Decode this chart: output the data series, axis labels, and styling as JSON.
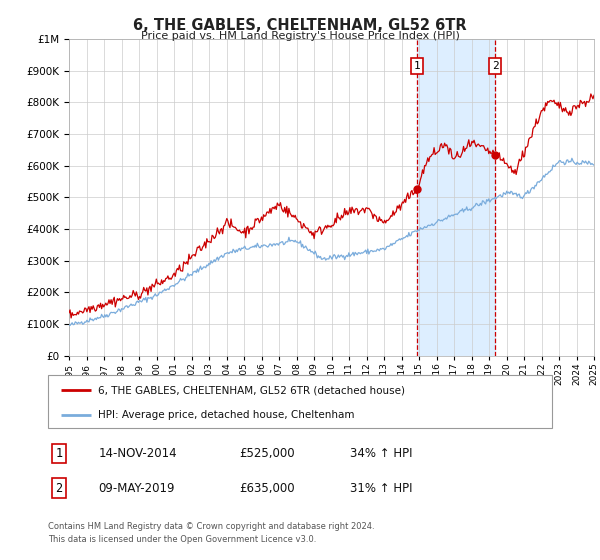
{
  "title": "6, THE GABLES, CHELTENHAM, GL52 6TR",
  "subtitle": "Price paid vs. HM Land Registry's House Price Index (HPI)",
  "hpi_label": "HPI: Average price, detached house, Cheltenham",
  "property_label": "6, THE GABLES, CHELTENHAM, GL52 6TR (detached house)",
  "red_color": "#cc0000",
  "blue_color": "#7aacdc",
  "blue_fill": "#ddeeff",
  "transaction1": {
    "date": "14-NOV-2014",
    "price": 525000,
    "hpi_pct": "34%",
    "x": 2014.87
  },
  "transaction2": {
    "date": "09-MAY-2019",
    "price": 635000,
    "hpi_pct": "31%",
    "x": 2019.36
  },
  "ylim": [
    0,
    1000000
  ],
  "xlim": [
    1995,
    2025
  ],
  "grid_color": "#cccccc",
  "background_color": "#ffffff",
  "footnote1": "Contains HM Land Registry data © Crown copyright and database right 2024.",
  "footnote2": "This data is licensed under the Open Government Licence v3.0."
}
